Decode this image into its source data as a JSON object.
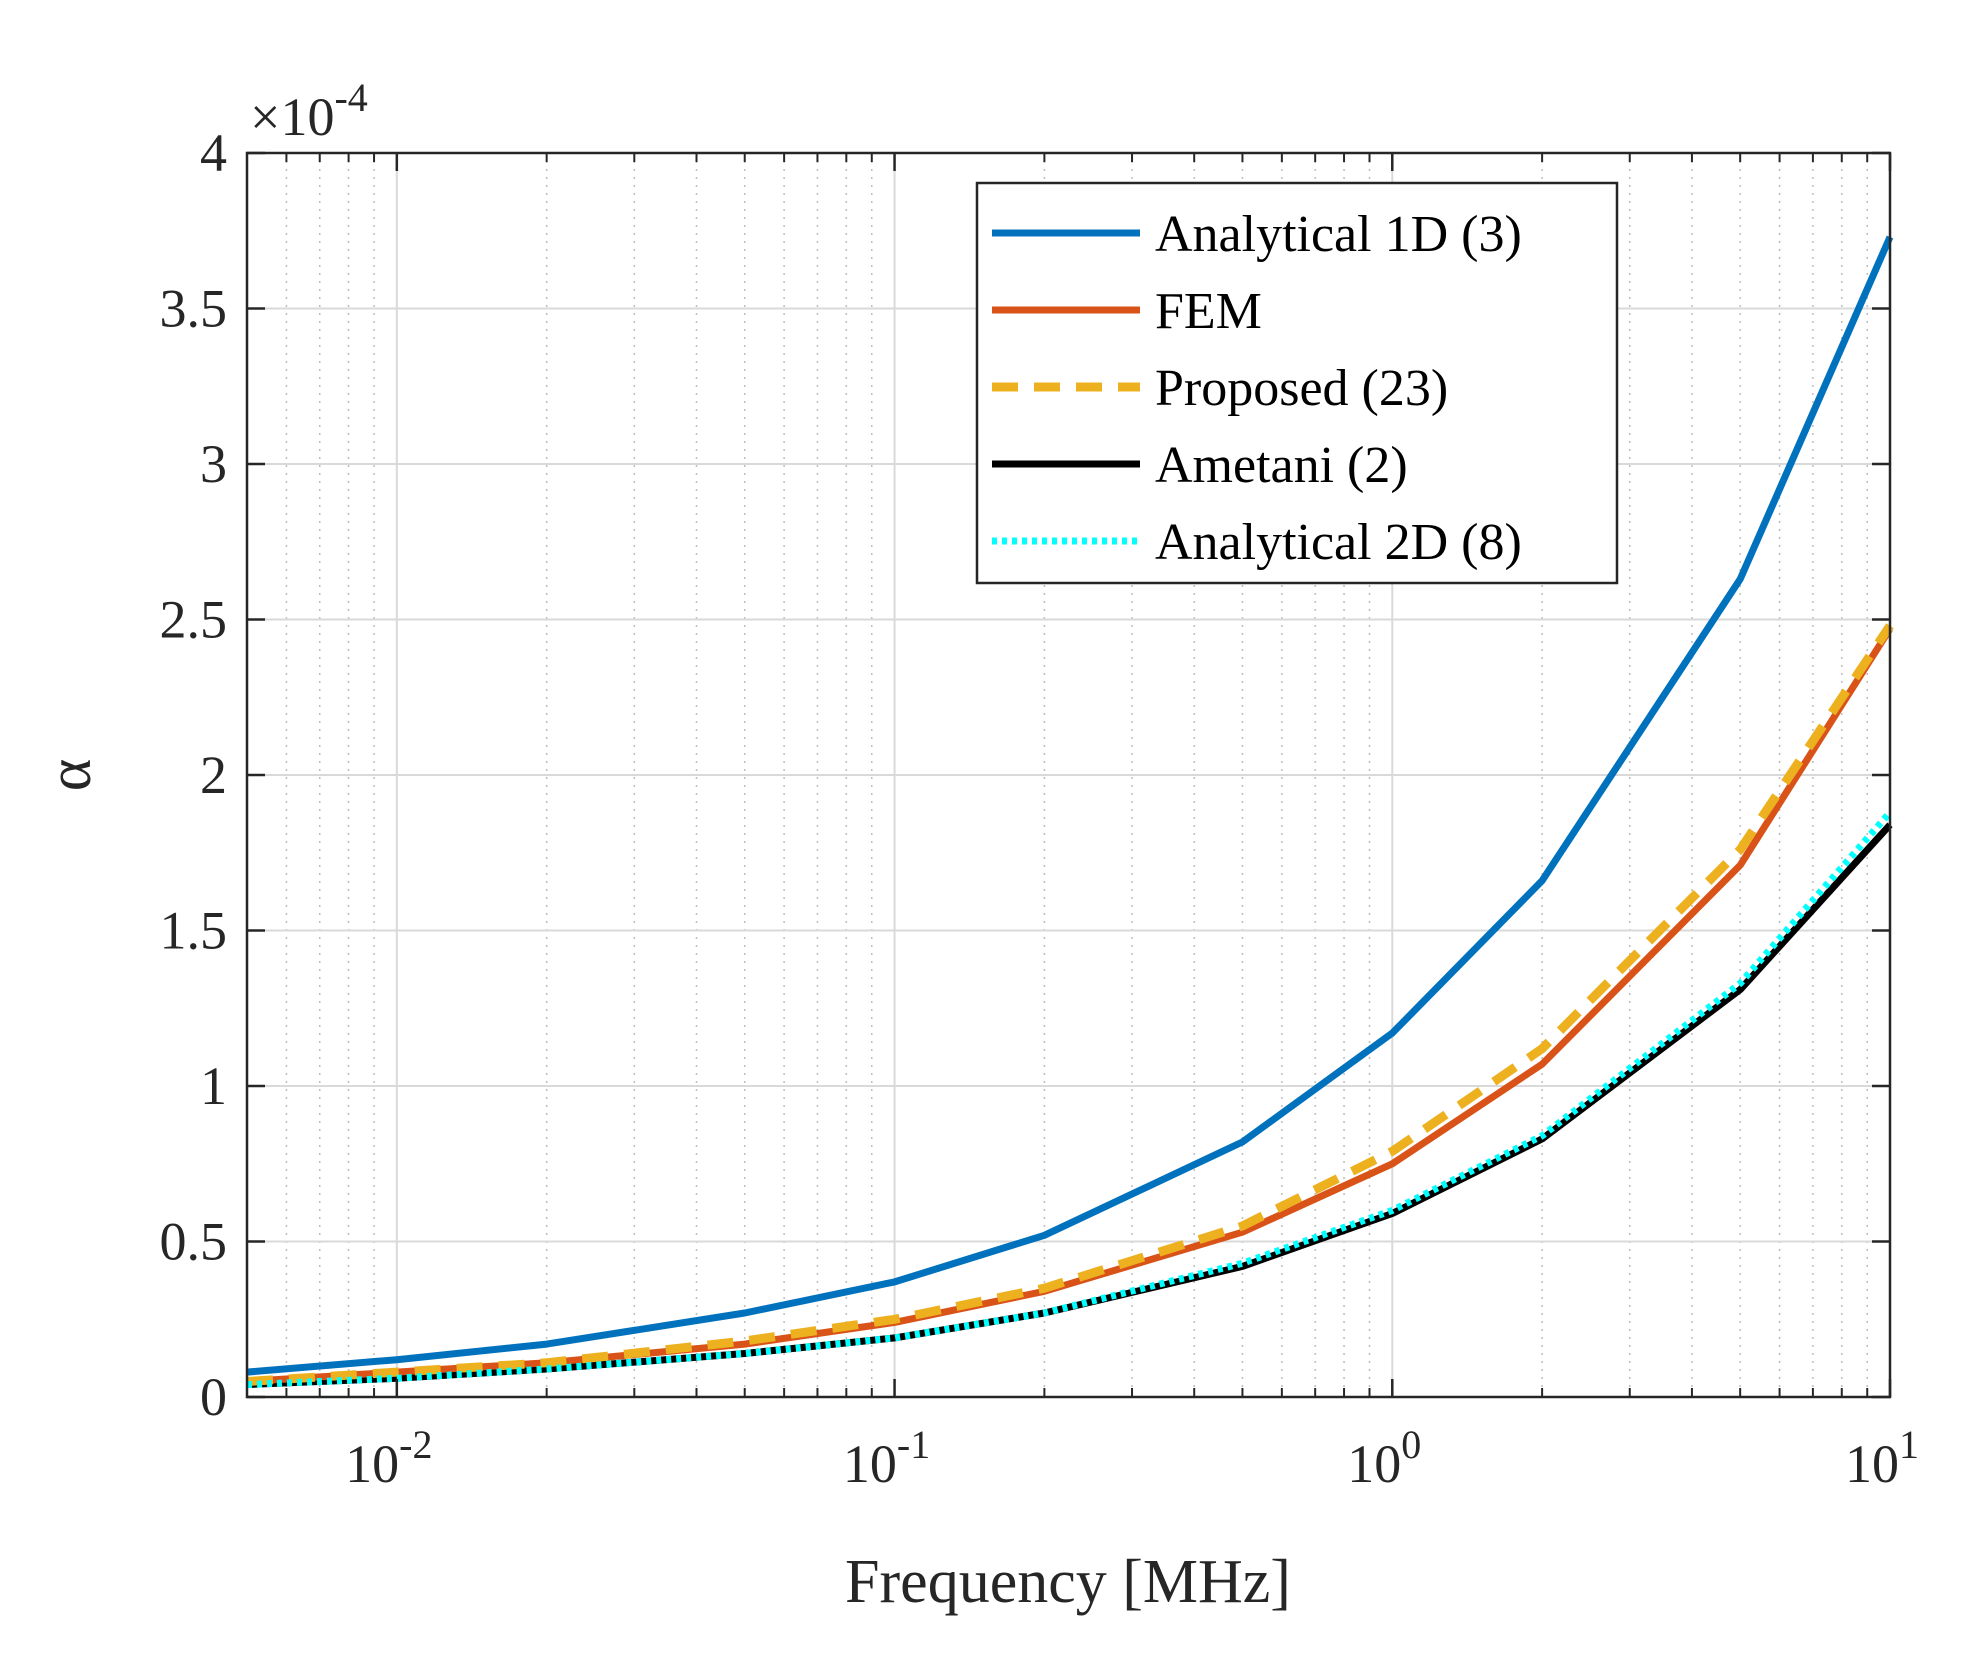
{
  "chart_data": {
    "type": "line",
    "title": "",
    "xlabel": "Frequency [MHz]",
    "ylabel": "α",
    "xscale": "log",
    "xlim": [
      0.005,
      10
    ],
    "ylim": [
      0,
      4
    ],
    "y_multiplier_label": "×10",
    "y_multiplier_exponent": "-4",
    "grid": true,
    "minor_grid": true,
    "legend_position": "top-right",
    "x_ticks": [
      {
        "value": 0.01,
        "base": "10",
        "exp": "-2"
      },
      {
        "value": 0.1,
        "base": "10",
        "exp": "-1"
      },
      {
        "value": 1,
        "base": "10",
        "exp": "0"
      },
      {
        "value": 10,
        "base": "10",
        "exp": "1"
      }
    ],
    "y_ticks": [
      {
        "value": 0,
        "label": "0"
      },
      {
        "value": 0.5,
        "label": "0.5"
      },
      {
        "value": 1,
        "label": "1"
      },
      {
        "value": 1.5,
        "label": "1.5"
      },
      {
        "value": 2,
        "label": "2"
      },
      {
        "value": 2.5,
        "label": "2.5"
      },
      {
        "value": 3,
        "label": "3"
      },
      {
        "value": 3.5,
        "label": "3.5"
      },
      {
        "value": 4,
        "label": "4"
      }
    ],
    "x": [
      0.005,
      0.01,
      0.02,
      0.05,
      0.1,
      0.2,
      0.5,
      1,
      2,
      5,
      10
    ],
    "series": [
      {
        "name": "Analytical 1D (3)",
        "color": "#0072BD",
        "style": "solid",
        "values": [
          0.08,
          0.12,
          0.17,
          0.27,
          0.37,
          0.52,
          0.82,
          1.17,
          1.66,
          2.63,
          3.73
        ]
      },
      {
        "name": "FEM",
        "color": "#D95319",
        "style": "solid",
        "values": [
          0.05,
          0.08,
          0.11,
          0.17,
          0.24,
          0.34,
          0.53,
          0.75,
          1.07,
          1.71,
          2.47
        ]
      },
      {
        "name": "Proposed (23)",
        "color": "#EDB120",
        "style": "dashed",
        "values": [
          0.05,
          0.08,
          0.11,
          0.18,
          0.25,
          0.35,
          0.55,
          0.79,
          1.12,
          1.76,
          2.48
        ]
      },
      {
        "name": "Ametani (2)",
        "color": "#000000",
        "style": "solid",
        "values": [
          0.04,
          0.06,
          0.09,
          0.14,
          0.19,
          0.27,
          0.42,
          0.59,
          0.83,
          1.31,
          1.84
        ]
      },
      {
        "name": "Analytical 2D (8)",
        "color": "#00FFFF",
        "style": "dotted",
        "values": [
          0.04,
          0.06,
          0.09,
          0.14,
          0.19,
          0.27,
          0.43,
          0.6,
          0.84,
          1.33,
          1.88
        ]
      }
    ]
  }
}
